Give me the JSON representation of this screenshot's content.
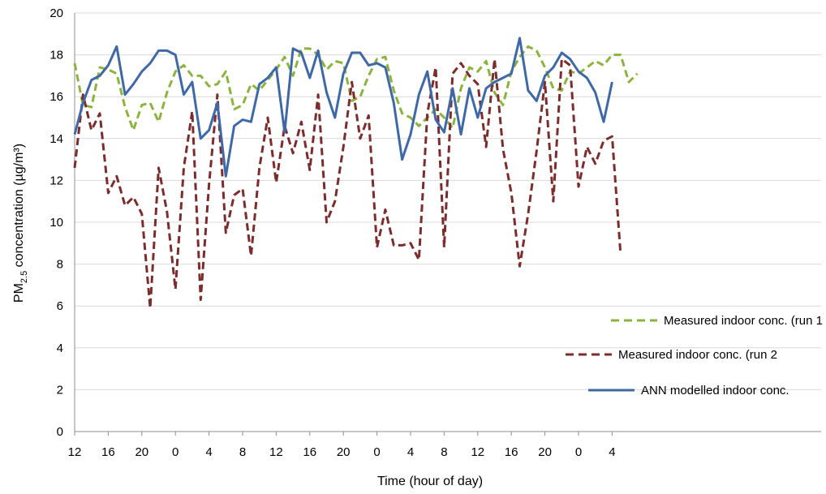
{
  "chart_data": {
    "type": "line",
    "ylabel": {
      "main": "PM",
      "sub": "2.5",
      "rest": " concentration (µg/m³)"
    },
    "xlabel": "Time (hour of day)",
    "ylim": [
      0,
      20
    ],
    "yticks": [
      "0",
      "2",
      "4",
      "6",
      "8",
      "10",
      "12",
      "14",
      "16",
      "18",
      "20"
    ],
    "xticks": [
      "12",
      "16",
      "20",
      "0",
      "4",
      "8",
      "12",
      "16",
      "20",
      "0",
      "4",
      "8",
      "12",
      "16",
      "20",
      "0",
      "4"
    ],
    "grid": "horizontal",
    "legend_position": "bottom-right",
    "x_step_hours": 1,
    "series": [
      {
        "name": "Measured indoor conc. (run 1",
        "style": "dashed",
        "color": "#8db33f",
        "values": [
          17.6,
          15.6,
          15.5,
          17.4,
          17.3,
          17.1,
          15.5,
          14.4,
          15.6,
          15.7,
          14.8,
          16.2,
          17.2,
          17.5,
          17.0,
          17.0,
          16.5,
          16.6,
          17.2,
          15.4,
          15.6,
          16.6,
          16.3,
          16.8,
          17.3,
          17.9,
          17.0,
          18.3,
          18.3,
          18.0,
          17.3,
          17.7,
          17.6,
          15.8,
          16.0,
          17.0,
          17.8,
          17.9,
          16.3,
          15.2,
          15.0,
          14.6,
          15.0,
          15.4,
          15.0,
          14.5,
          16.4,
          17.4,
          17.2,
          17.7,
          16.2,
          15.6,
          17.2,
          17.9,
          18.4,
          18.2,
          17.4,
          16.4,
          16.3,
          17.2,
          17.1,
          17.4,
          17.7,
          17.5,
          18.0,
          18.0,
          16.7,
          17.1
        ]
      },
      {
        "name": "Measured indoor conc. (run 2",
        "style": "dashed",
        "color": "#7b2c2c",
        "values": [
          12.6,
          16.1,
          14.4,
          15.2,
          11.4,
          12.2,
          10.8,
          11.2,
          10.4,
          5.9,
          12.6,
          10.5,
          6.8,
          12.6,
          15.3,
          6.3,
          11.8,
          16.1,
          9.5,
          11.3,
          11.6,
          8.4,
          12.6,
          15.0,
          11.9,
          14.6,
          13.3,
          14.8,
          12.5,
          16.1,
          10.0,
          11.0,
          13.6,
          16.7,
          14.0,
          15.1,
          8.8,
          10.6,
          8.9,
          8.9,
          9.0,
          8.2,
          15.2,
          17.4,
          8.8,
          17.1,
          17.6,
          17.0,
          16.6,
          13.6,
          17.8,
          13.5,
          11.4,
          7.9,
          10.4,
          13.4,
          16.7,
          11.0,
          17.8,
          17.5,
          11.7,
          13.6,
          12.8,
          13.9,
          14.1,
          8.5
        ]
      },
      {
        "name": "ANN modelled indoor conc.",
        "style": "solid",
        "color": "#3f68a6",
        "values": [
          14.2,
          15.7,
          16.8,
          17.0,
          17.5,
          18.4,
          16.1,
          16.6,
          17.2,
          17.6,
          18.2,
          18.2,
          18.0,
          16.1,
          16.7,
          14.0,
          14.4,
          15.7,
          12.2,
          14.6,
          14.9,
          14.8,
          16.6,
          16.9,
          17.4,
          14.3,
          18.3,
          18.1,
          16.9,
          18.2,
          16.2,
          15.0,
          17.1,
          18.1,
          18.1,
          17.5,
          17.6,
          17.4,
          15.7,
          13.0,
          14.2,
          16.1,
          17.2,
          14.9,
          14.3,
          16.4,
          14.2,
          16.4,
          15.0,
          16.4,
          16.7,
          16.9,
          17.1,
          18.8,
          16.3,
          15.8,
          17.0,
          17.4,
          18.1,
          17.8,
          17.2,
          16.9,
          16.2,
          14.8,
          16.7
        ]
      }
    ]
  }
}
